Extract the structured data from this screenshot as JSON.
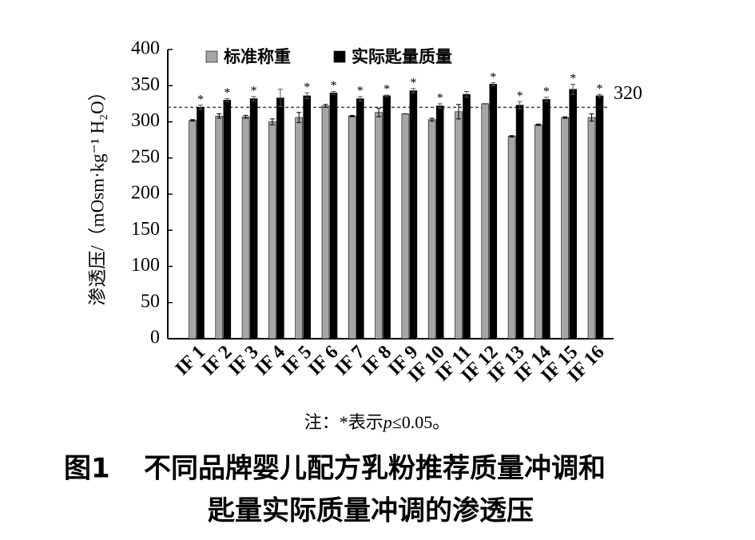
{
  "chart_data": {
    "type": "bar",
    "y_label": "渗透压/（mOsm·kg⁻¹ H₂O）",
    "categories": [
      "IF 1",
      "IF 2",
      "IF 3",
      "IF 4",
      "IF 5",
      "IF 6",
      "IF 7",
      "IF 8",
      "IF 9",
      "IF 10",
      "IF 11",
      "IF 12",
      "IF 13",
      "IF 14",
      "IF 15",
      "IF 16"
    ],
    "series": [
      {
        "name": "标准称重",
        "color": "#a6a6a6",
        "values": [
          302,
          308,
          307,
          300,
          306,
          322,
          308,
          313,
          311,
          303,
          314,
          325,
          280,
          296,
          306,
          306
        ],
        "errors": [
          1,
          3,
          2,
          4,
          7,
          2,
          1,
          6,
          0,
          2,
          10,
          0,
          1,
          1,
          1,
          5
        ]
      },
      {
        "name": "实际匙量质量",
        "color": "#000000",
        "values": [
          320,
          330,
          332,
          333,
          336,
          340,
          332,
          336,
          343,
          322,
          338,
          352,
          323,
          331,
          345,
          336
        ],
        "errors": [
          3,
          2,
          3,
          12,
          4,
          2,
          3,
          1,
          3,
          3,
          4,
          2,
          5,
          3,
          7,
          2
        ]
      }
    ],
    "markers": [
      "*",
      "*",
      "*",
      null,
      "*",
      "*",
      "*",
      "*",
      "*",
      "*",
      null,
      "*",
      "*",
      "*",
      "*",
      "*"
    ],
    "reference_line": 320,
    "ylim": [
      0,
      400
    ],
    "yticks": [
      0,
      50,
      100,
      150,
      200,
      250,
      300,
      350,
      400
    ],
    "note_parts": [
      "注：*表示",
      "p",
      "≤0.05。"
    ],
    "figure_label": "图1",
    "title_lines": [
      "不同品牌婴儿配方乳粉推荐质量冲调和",
      "匙量实际质量冲调的渗透压"
    ]
  }
}
